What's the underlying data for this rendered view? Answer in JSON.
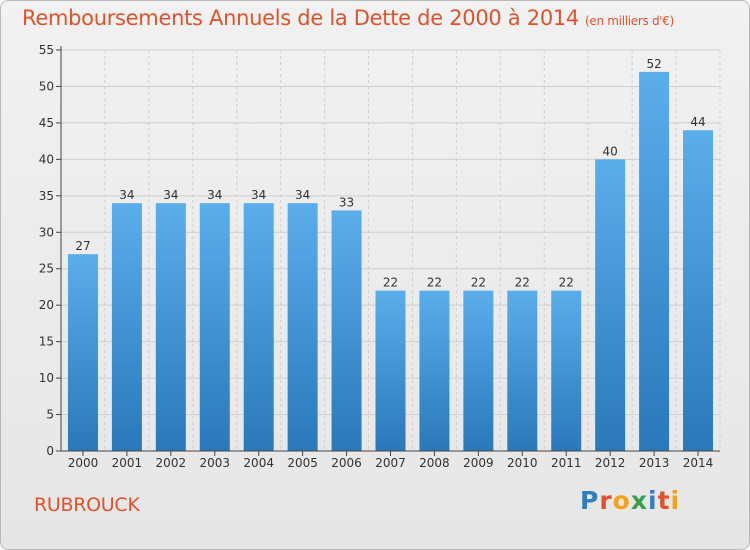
{
  "title": "Remboursements Annuels de la Dette de 2000 à 2014",
  "subtitle": "(en milliers d'€)",
  "place": "RUBROUCK",
  "logo": {
    "text": "Proxiti",
    "colors": [
      "#2f7fc1",
      "#e0522b",
      "#f2a31b",
      "#3aa04a",
      "#2f7fc1",
      "#e0522b",
      "#f2a31b"
    ]
  },
  "colors": {
    "bar": "#4a9fe0",
    "bar_dark": "#2e7cbf",
    "title": "#e0522b",
    "grid": "#cfcfcf"
  },
  "chart_data": {
    "type": "bar",
    "categories": [
      "2000",
      "2001",
      "2002",
      "2003",
      "2004",
      "2005",
      "2006",
      "2007",
      "2008",
      "2009",
      "2010",
      "2011",
      "2012",
      "2013",
      "2014"
    ],
    "values": [
      27,
      34,
      34,
      34,
      34,
      34,
      33,
      22,
      22,
      22,
      22,
      22,
      40,
      52,
      44
    ],
    "ylim": [
      0,
      55
    ],
    "yticks": [
      0,
      5,
      10,
      15,
      20,
      25,
      30,
      35,
      40,
      45,
      50,
      55
    ],
    "grid": true,
    "xlabel": "",
    "ylabel": ""
  }
}
